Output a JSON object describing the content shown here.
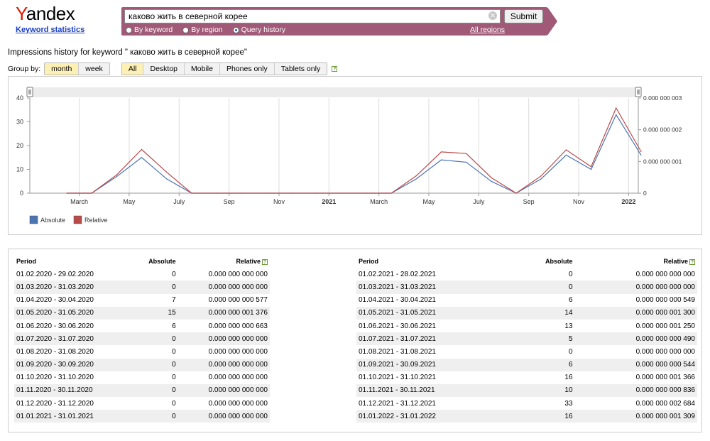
{
  "logo": {
    "brand_first": "Y",
    "brand_rest": "andex",
    "subtitle": "Keyword statistics"
  },
  "search": {
    "query": "каково жить в северной корее",
    "submit_label": "Submit",
    "clear_icon": "close-circle-icon",
    "modes": [
      {
        "label": "By keyword",
        "selected": false
      },
      {
        "label": "By region",
        "selected": false
      },
      {
        "label": "Query history",
        "selected": true
      }
    ],
    "region_link": "All regions"
  },
  "history": {
    "title": "Impressions history for keyword \" каково жить в северной корее\"",
    "group_by_label": "Group by:",
    "group_options": [
      {
        "label": "month",
        "active": true
      },
      {
        "label": "week",
        "active": false
      }
    ],
    "device_options": [
      {
        "label": "All",
        "active": true
      },
      {
        "label": "Desktop",
        "active": false
      },
      {
        "label": "Mobile",
        "active": false
      },
      {
        "label": "Phones only",
        "active": false
      },
      {
        "label": "Tablets only",
        "active": false
      }
    ],
    "help_icon": "?"
  },
  "colors": {
    "absolute": "#4a74b4",
    "relative": "#b94a4a",
    "searchbar": "#a05a78"
  },
  "chart_data": {
    "type": "line",
    "x_tick_labels": [
      "March",
      "May",
      "July",
      "Sep",
      "Nov",
      "2021",
      "March",
      "May",
      "July",
      "Sep",
      "Nov",
      "2022"
    ],
    "x": [
      "2020-02",
      "2020-03",
      "2020-04",
      "2020-05",
      "2020-06",
      "2020-07",
      "2020-08",
      "2020-09",
      "2020-10",
      "2020-11",
      "2020-12",
      "2021-01",
      "2021-02",
      "2021-03",
      "2021-04",
      "2021-05",
      "2021-06",
      "2021-07",
      "2021-08",
      "2021-09",
      "2021-10",
      "2021-11",
      "2021-12",
      "2022-01"
    ],
    "y_left_ticks": [
      "0",
      "10",
      "20",
      "30",
      "40"
    ],
    "y_right_ticks": [
      "0",
      "0.000 000 001",
      "0.000 000 002",
      "0.000 000 003"
    ],
    "ylim_left": [
      0,
      40
    ],
    "ylim_right": [
      0,
      3e-09
    ],
    "grid": true,
    "legend_position": "bottom-left",
    "series": [
      {
        "name": "Absolute",
        "axis": "left",
        "values": [
          0,
          0,
          7,
          15,
          6,
          0,
          0,
          0,
          0,
          0,
          0,
          0,
          0,
          0,
          6,
          14,
          13,
          5,
          0,
          6,
          16,
          10,
          33,
          16
        ]
      },
      {
        "name": "Relative",
        "axis": "right",
        "values": [
          0,
          0,
          5.77e-10,
          1.376e-09,
          6.63e-10,
          0,
          0,
          0,
          0,
          0,
          0,
          0,
          0,
          0,
          5.49e-10,
          1.3e-09,
          1.25e-09,
          4.9e-10,
          0,
          5.44e-10,
          1.366e-09,
          8.36e-10,
          2.684e-09,
          1.309e-09
        ]
      }
    ]
  },
  "table": {
    "headers": {
      "period": "Period",
      "absolute": "Absolute",
      "relative": "Relative"
    },
    "left": [
      {
        "period": "01.02.2020 - 29.02.2020",
        "absolute": "0",
        "relative": "0.000 000 000 000"
      },
      {
        "period": "01.03.2020 - 31.03.2020",
        "absolute": "0",
        "relative": "0.000 000 000 000"
      },
      {
        "period": "01.04.2020 - 30.04.2020",
        "absolute": "7",
        "relative": "0.000 000 000 577"
      },
      {
        "period": "01.05.2020 - 31.05.2020",
        "absolute": "15",
        "relative": "0.000 000 001 376"
      },
      {
        "period": "01.06.2020 - 30.06.2020",
        "absolute": "6",
        "relative": "0.000 000 000 663"
      },
      {
        "period": "01.07.2020 - 31.07.2020",
        "absolute": "0",
        "relative": "0.000 000 000 000"
      },
      {
        "period": "01.08.2020 - 31.08.2020",
        "absolute": "0",
        "relative": "0.000 000 000 000"
      },
      {
        "period": "01.09.2020 - 30.09.2020",
        "absolute": "0",
        "relative": "0.000 000 000 000"
      },
      {
        "period": "01.10.2020 - 31.10.2020",
        "absolute": "0",
        "relative": "0.000 000 000 000"
      },
      {
        "period": "01.11.2020 - 30.11.2020",
        "absolute": "0",
        "relative": "0.000 000 000 000"
      },
      {
        "period": "01.12.2020 - 31.12.2020",
        "absolute": "0",
        "relative": "0.000 000 000 000"
      },
      {
        "period": "01.01.2021 - 31.01.2021",
        "absolute": "0",
        "relative": "0.000 000 000 000"
      }
    ],
    "right": [
      {
        "period": "01.02.2021 - 28.02.2021",
        "absolute": "0",
        "relative": "0.000 000 000 000"
      },
      {
        "period": "01.03.2021 - 31.03.2021",
        "absolute": "0",
        "relative": "0.000 000 000 000"
      },
      {
        "period": "01.04.2021 - 30.04.2021",
        "absolute": "6",
        "relative": "0.000 000 000 549"
      },
      {
        "period": "01.05.2021 - 31.05.2021",
        "absolute": "14",
        "relative": "0.000 000 001 300"
      },
      {
        "period": "01.06.2021 - 30.06.2021",
        "absolute": "13",
        "relative": "0.000 000 001 250"
      },
      {
        "period": "01.07.2021 - 31.07.2021",
        "absolute": "5",
        "relative": "0.000 000 000 490"
      },
      {
        "period": "01.08.2021 - 31.08.2021",
        "absolute": "0",
        "relative": "0.000 000 000 000"
      },
      {
        "period": "01.09.2021 - 30.09.2021",
        "absolute": "6",
        "relative": "0.000 000 000 544"
      },
      {
        "period": "01.10.2021 - 31.10.2021",
        "absolute": "16",
        "relative": "0.000 000 001 366"
      },
      {
        "period": "01.11.2021 - 30.11.2021",
        "absolute": "10",
        "relative": "0.000 000 000 836"
      },
      {
        "period": "01.12.2021 - 31.12.2021",
        "absolute": "33",
        "relative": "0.000 000 002 684"
      },
      {
        "period": "01.01.2022 - 31.01.2022",
        "absolute": "16",
        "relative": "0.000 000 001 309"
      }
    ]
  }
}
